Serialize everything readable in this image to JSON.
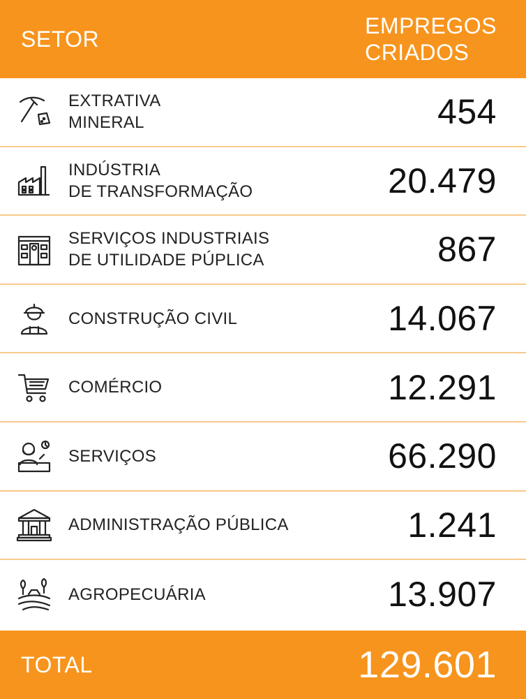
{
  "header": {
    "col_setor": "SETOR",
    "col_empregos_line1": "EMPREGOS",
    "col_empregos_line2": "CRIADOS"
  },
  "rows": [
    {
      "icon": "pickaxe-icon",
      "label_line1": "EXTRATIVA",
      "label_line2": "MINERAL",
      "value": "454"
    },
    {
      "icon": "factory-icon",
      "label_line1": "INDÚSTRIA",
      "label_line2": "DE TRANSFORMAÇÃO",
      "value": "20.479"
    },
    {
      "icon": "utility-building-icon",
      "label_line1": "SERVIÇOS INDUSTRIAIS",
      "label_line2": "DE UTILIDADE PÚPLICA",
      "value": "867"
    },
    {
      "icon": "construction-worker-icon",
      "label_line1": "CONSTRUÇÃO CIVIL",
      "label_line2": "",
      "value": "14.067"
    },
    {
      "icon": "shopping-cart-icon",
      "label_line1": "COMÉRCIO",
      "label_line2": "",
      "value": "12.291"
    },
    {
      "icon": "service-attendant-icon",
      "label_line1": "SERVIÇOS",
      "label_line2": "",
      "value": "66.290"
    },
    {
      "icon": "government-building-icon",
      "label_line1": "ADMINISTRAÇÃO PÚBLICA",
      "label_line2": "",
      "value": "1.241"
    },
    {
      "icon": "farm-field-icon",
      "label_line1": "AGROPECUÁRIA",
      "label_line2": "",
      "value": "13.907"
    }
  ],
  "footer": {
    "total_label": "TOTAL",
    "total_value": "129.601"
  },
  "colors": {
    "accent": "#f7941d",
    "divider": "#f9c98a",
    "text": "#222222"
  }
}
